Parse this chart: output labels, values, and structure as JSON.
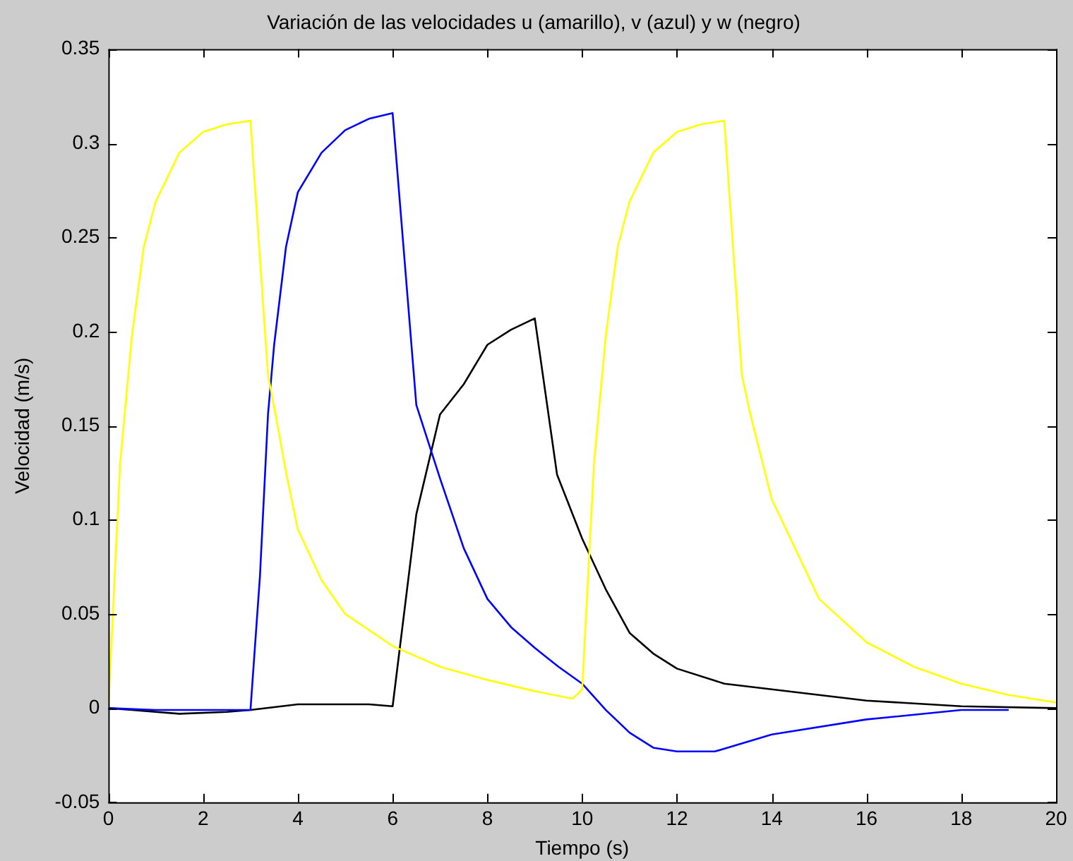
{
  "chart_data": {
    "type": "line",
    "title": "Variación de las velocidades u (amarillo), v (azul) y w (negro)",
    "xlabel": "Tiempo (s)",
    "ylabel": "Velocidad (m/s)",
    "xlim": [
      0,
      20
    ],
    "ylim": [
      -0.05,
      0.35
    ],
    "xticks": [
      0,
      2,
      4,
      6,
      8,
      10,
      12,
      14,
      16,
      18,
      20
    ],
    "yticks": [
      {
        "value": -0.05,
        "label": "-0.05"
      },
      0,
      0.05,
      0.1,
      0.15,
      0.2,
      0.25,
      0.3,
      0.35
    ],
    "grid": false,
    "legend": false,
    "marker": "none",
    "line_style": "solid",
    "series": [
      {
        "color": "#ffff00",
        "x": [
          0,
          0.25,
          0.5,
          0.75,
          1,
          1.5,
          2,
          2.5,
          3,
          3.37,
          3.5,
          3.76,
          4,
          4.5,
          5,
          6,
          7,
          8,
          9,
          9.8,
          10,
          10.25,
          10.5,
          10.75,
          11,
          11.5,
          12,
          12.5,
          13,
          13.37,
          13.55,
          14,
          15,
          16,
          17,
          18,
          19,
          20
        ],
        "values": [
          0,
          0.13,
          0.198,
          0.245,
          0.269,
          0.295,
          0.306,
          0.31,
          0.312,
          0.177,
          0.16,
          0.124,
          0.095,
          0.068,
          0.05,
          0.033,
          0.022,
          0.015,
          0.009,
          0.005,
          0.01,
          0.13,
          0.198,
          0.245,
          0.269,
          0.295,
          0.306,
          0.31,
          0.312,
          0.177,
          0.156,
          0.111,
          0.058,
          0.035,
          0.022,
          0.013,
          0.007,
          0.003
        ]
      },
      {
        "color": "#0000ff",
        "x": [
          0,
          1,
          2,
          3,
          3.2,
          3.37,
          3.5,
          3.75,
          4,
          4.5,
          5,
          5.5,
          6,
          6.5,
          7,
          7.5,
          8,
          8.5,
          9,
          9.5,
          10,
          10.5,
          11,
          11.5,
          12,
          12.8,
          14,
          16,
          18,
          19
        ],
        "values": [
          0,
          -0.001,
          -0.001,
          -0.001,
          0.07,
          0.156,
          0.193,
          0.245,
          0.274,
          0.295,
          0.307,
          0.313,
          0.316,
          0.161,
          0.122,
          0.085,
          0.058,
          0.043,
          0.032,
          0.022,
          0.013,
          -0.001,
          -0.013,
          -0.021,
          -0.023,
          -0.023,
          -0.014,
          -0.006,
          -0.001,
          -0.001
        ]
      },
      {
        "color": "#000000",
        "x": [
          0,
          0.5,
          1.5,
          2.5,
          3,
          4,
          5,
          5.5,
          6,
          6.5,
          7,
          7.5,
          8,
          8.5,
          9,
          9.47,
          10,
          10.5,
          11,
          11.5,
          12,
          13,
          14,
          16,
          18,
          20
        ],
        "values": [
          0,
          -0.001,
          -0.003,
          -0.002,
          -0.001,
          0.002,
          0.002,
          0.002,
          0.001,
          0.103,
          0.156,
          0.172,
          0.193,
          0.201,
          0.207,
          0.124,
          0.09,
          0.063,
          0.04,
          0.029,
          0.021,
          0.013,
          0.01,
          0.004,
          0.001,
          0
        ]
      }
    ]
  }
}
